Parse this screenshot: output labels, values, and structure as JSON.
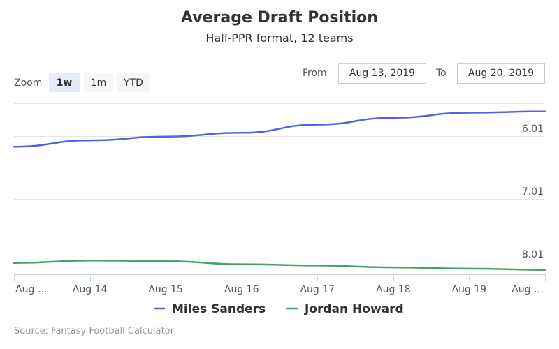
{
  "chart_data": {
    "type": "line",
    "title": "Average Draft Position",
    "subtitle": "Half-PPR format, 12 teams",
    "x": [
      "Aug 13",
      "Aug 14",
      "Aug 15",
      "Aug 16",
      "Aug 17",
      "Aug 18",
      "Aug 19",
      "Aug 20"
    ],
    "x_tick_labels": [
      "Aug …",
      "Aug 14",
      "Aug 15",
      "Aug 16",
      "Aug 17",
      "Aug 18",
      "Aug 19",
      "Aug …"
    ],
    "y_axis": {
      "reversed": true,
      "range": [
        5.49,
        8.21
      ],
      "ticks": [
        "6.01",
        "7.01",
        "8.01"
      ],
      "tick_values": [
        6.01,
        7.01,
        8.01
      ]
    },
    "series": [
      {
        "name": "Miles Sanders",
        "color": "#5661e0",
        "values": [
          6.18,
          6.08,
          6.02,
          5.96,
          5.83,
          5.72,
          5.64,
          5.62
        ]
      },
      {
        "name": "Jordan Howard",
        "color": "#47a361",
        "values": [
          8.03,
          7.99,
          8.0,
          8.05,
          8.07,
          8.1,
          8.12,
          8.14
        ]
      }
    ],
    "grid": true,
    "legend_position": "bottom"
  },
  "range_selector": {
    "zoom_label": "Zoom",
    "buttons": [
      {
        "label": "1w",
        "active": true
      },
      {
        "label": "1m",
        "active": false
      },
      {
        "label": "YTD",
        "active": false
      }
    ],
    "from_label": "From",
    "from_value": "Aug 13, 2019",
    "to_label": "To",
    "to_value": "Aug 20, 2019"
  },
  "credits": "Source: Fantasy Football Calculator"
}
